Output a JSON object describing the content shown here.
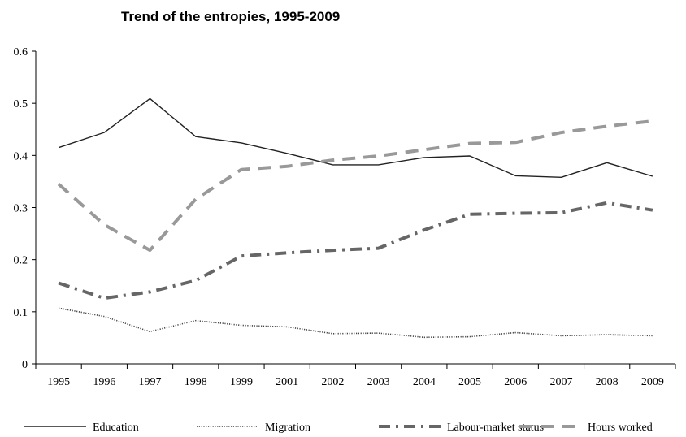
{
  "chart_data": {
    "type": "line",
    "title": "Trend of the entropies, 1995-2009",
    "xlabel": "",
    "ylabel": "",
    "categories": [
      "1995",
      "1996",
      "1997",
      "1998",
      "1999",
      "2001",
      "2002",
      "2003",
      "2004",
      "2005",
      "2006",
      "2007",
      "2008",
      "2009"
    ],
    "yticks": [
      "0",
      "0.1",
      "0.2",
      "0.3",
      "0.4",
      "0.5",
      "0.6"
    ],
    "ylim": [
      0,
      0.6
    ],
    "grid": false,
    "legend_position": "bottom",
    "series": [
      {
        "name": "Education",
        "color": "#222222",
        "style": "solid",
        "values": [
          0.415,
          0.444,
          0.509,
          0.436,
          0.424,
          0.404,
          0.382,
          0.382,
          0.396,
          0.399,
          0.361,
          0.358,
          0.386,
          0.36
        ]
      },
      {
        "name": "Migration",
        "color": "#444444",
        "style": "dotted",
        "values": [
          0.107,
          0.091,
          0.062,
          0.083,
          0.074,
          0.071,
          0.058,
          0.059,
          0.051,
          0.052,
          0.06,
          0.054,
          0.056,
          0.054
        ]
      },
      {
        "name": "Labour-market status",
        "color": "#666666",
        "style": "dashdot",
        "values": [
          0.155,
          0.126,
          0.138,
          0.16,
          0.207,
          0.213,
          0.218,
          0.222,
          0.257,
          0.287,
          0.289,
          0.29,
          0.309,
          0.295
        ]
      },
      {
        "name": "Hours worked",
        "color": "#999999",
        "style": "dashed",
        "values": [
          0.345,
          0.267,
          0.218,
          0.316,
          0.373,
          0.379,
          0.391,
          0.399,
          0.411,
          0.423,
          0.425,
          0.444,
          0.456,
          0.466
        ]
      }
    ]
  }
}
